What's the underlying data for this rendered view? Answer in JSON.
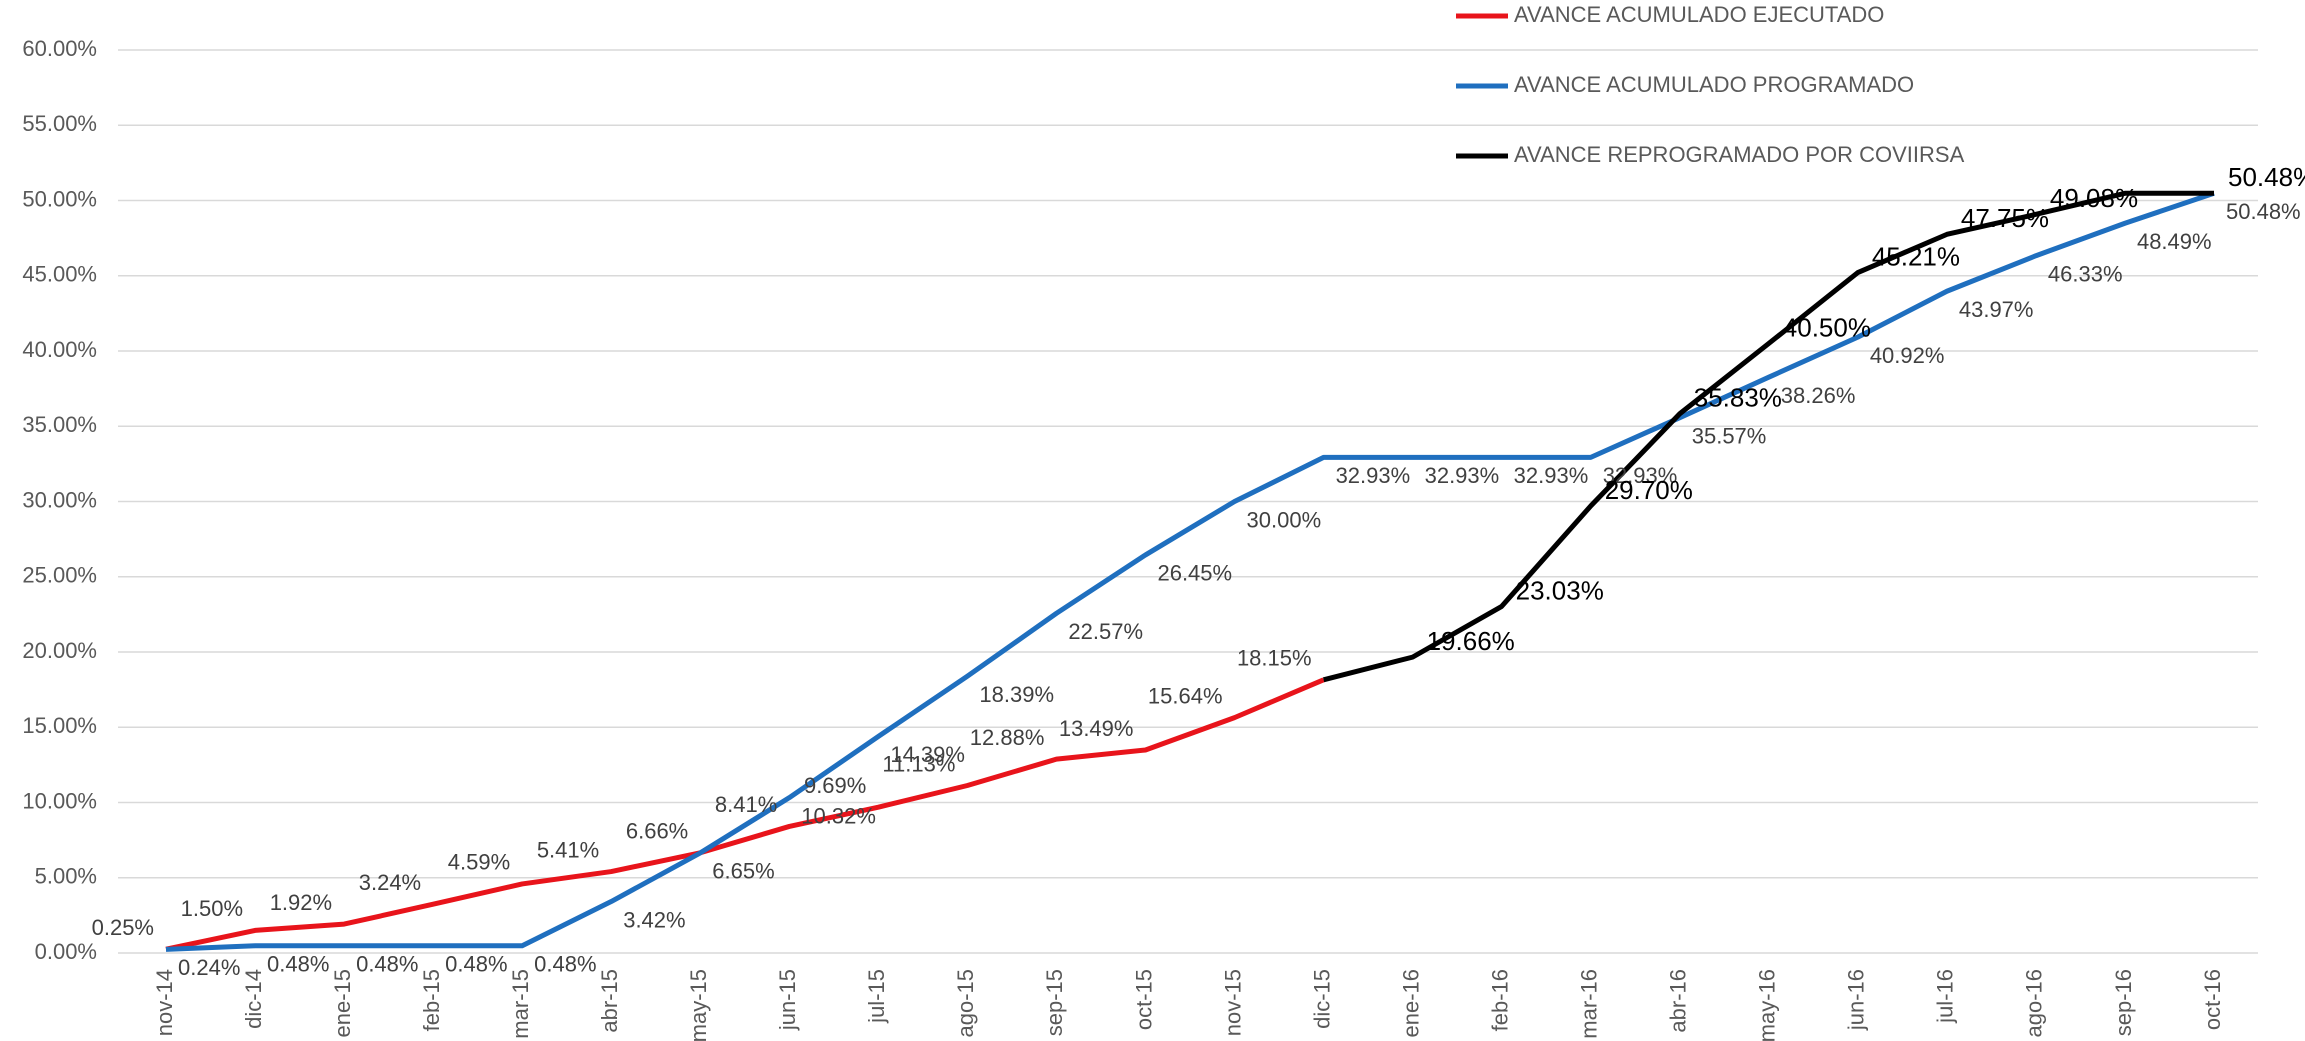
{
  "chart_data": {
    "type": "line",
    "categories": [
      "nov-14",
      "dic-14",
      "ene-15",
      "feb-15",
      "mar-15",
      "abr-15",
      "may-15",
      "jun-15",
      "jul-15",
      "ago-15",
      "sep-15",
      "oct-15",
      "nov-15",
      "dic-15",
      "ene-16",
      "feb-16",
      "mar-16",
      "abr-16",
      "may-16",
      "jun-16",
      "jul-16",
      "ago-16",
      "sep-16",
      "oct-16"
    ],
    "series": [
      {
        "name": "AVANCE ACUMULADO EJECUTADO",
        "color": "#e8141b",
        "values": [
          0.25,
          1.5,
          1.92,
          3.24,
          4.59,
          5.41,
          6.66,
          8.41,
          9.69,
          11.13,
          12.88,
          13.49,
          15.64,
          18.15,
          null,
          null,
          null,
          null,
          null,
          null,
          null,
          null,
          null,
          null
        ],
        "value_labels": [
          "0.25%",
          "1.50%",
          "1.92%",
          "3.24%",
          "4.59%",
          "5.41%",
          "6.66%",
          "8.41%",
          "9.69%",
          "11.13%",
          "12.88%",
          "13.49%",
          "15.64%",
          "18.15%",
          null,
          null,
          null,
          null,
          null,
          null,
          null,
          null,
          null,
          null
        ]
      },
      {
        "name": "AVANCE ACUMULADO PROGRAMADO",
        "color": "#1f6fbf",
        "values": [
          0.24,
          0.48,
          0.48,
          0.48,
          0.48,
          3.42,
          6.65,
          10.32,
          14.39,
          18.39,
          22.57,
          26.45,
          30.0,
          32.93,
          32.93,
          32.93,
          32.93,
          35.57,
          38.26,
          40.92,
          43.97,
          46.33,
          48.49,
          50.48
        ],
        "value_labels": [
          "0.24%",
          "0.48%",
          "0.48%",
          "0.48%",
          "0.48%",
          "3.42%",
          "6.65%",
          "10.32%",
          "14.39%",
          "18.39%",
          "22.57%",
          "26.45%",
          "30.00%",
          "32.93%",
          "32.93%",
          "32.93%",
          "32.93%",
          "35.57%",
          "38.26%",
          "40.92%",
          "43.97%",
          "46.33%",
          "48.49%",
          "50.48%"
        ]
      },
      {
        "name": "AVANCE REPROGRAMADO POR COVIIRSA",
        "color": "#000000",
        "values": [
          null,
          null,
          null,
          null,
          null,
          null,
          null,
          null,
          null,
          null,
          null,
          null,
          null,
          18.15,
          19.66,
          23.03,
          29.7,
          35.83,
          40.5,
          45.21,
          47.75,
          49.08,
          50.48,
          50.48
        ],
        "value_labels": [
          null,
          null,
          null,
          null,
          null,
          null,
          null,
          null,
          null,
          null,
          null,
          null,
          null,
          null,
          "19.66%",
          "23.03%",
          "29.70%",
          "35.83%",
          "40.50%",
          "45.21%",
          "47.75%",
          "49.08%",
          null,
          "50.48%"
        ]
      }
    ],
    "ylim": [
      0,
      60
    ],
    "yticks": [
      {
        "value": 0,
        "label": "0.00%"
      },
      {
        "value": 5,
        "label": "5.00%"
      },
      {
        "value": 10,
        "label": "10.00%"
      },
      {
        "value": 15,
        "label": "15.00%"
      },
      {
        "value": 20,
        "label": "20.00%"
      },
      {
        "value": 25,
        "label": "25.00%"
      },
      {
        "value": 30,
        "label": "30.00%"
      },
      {
        "value": 35,
        "label": "35.00%"
      },
      {
        "value": 40,
        "label": "40.00%"
      },
      {
        "value": 45,
        "label": "45.00%"
      },
      {
        "value": 50,
        "label": "50.00%"
      },
      {
        "value": 55,
        "label": "55.00%"
      },
      {
        "value": 60,
        "label": "60.00%"
      }
    ],
    "grid": true,
    "legend": "upper right"
  }
}
